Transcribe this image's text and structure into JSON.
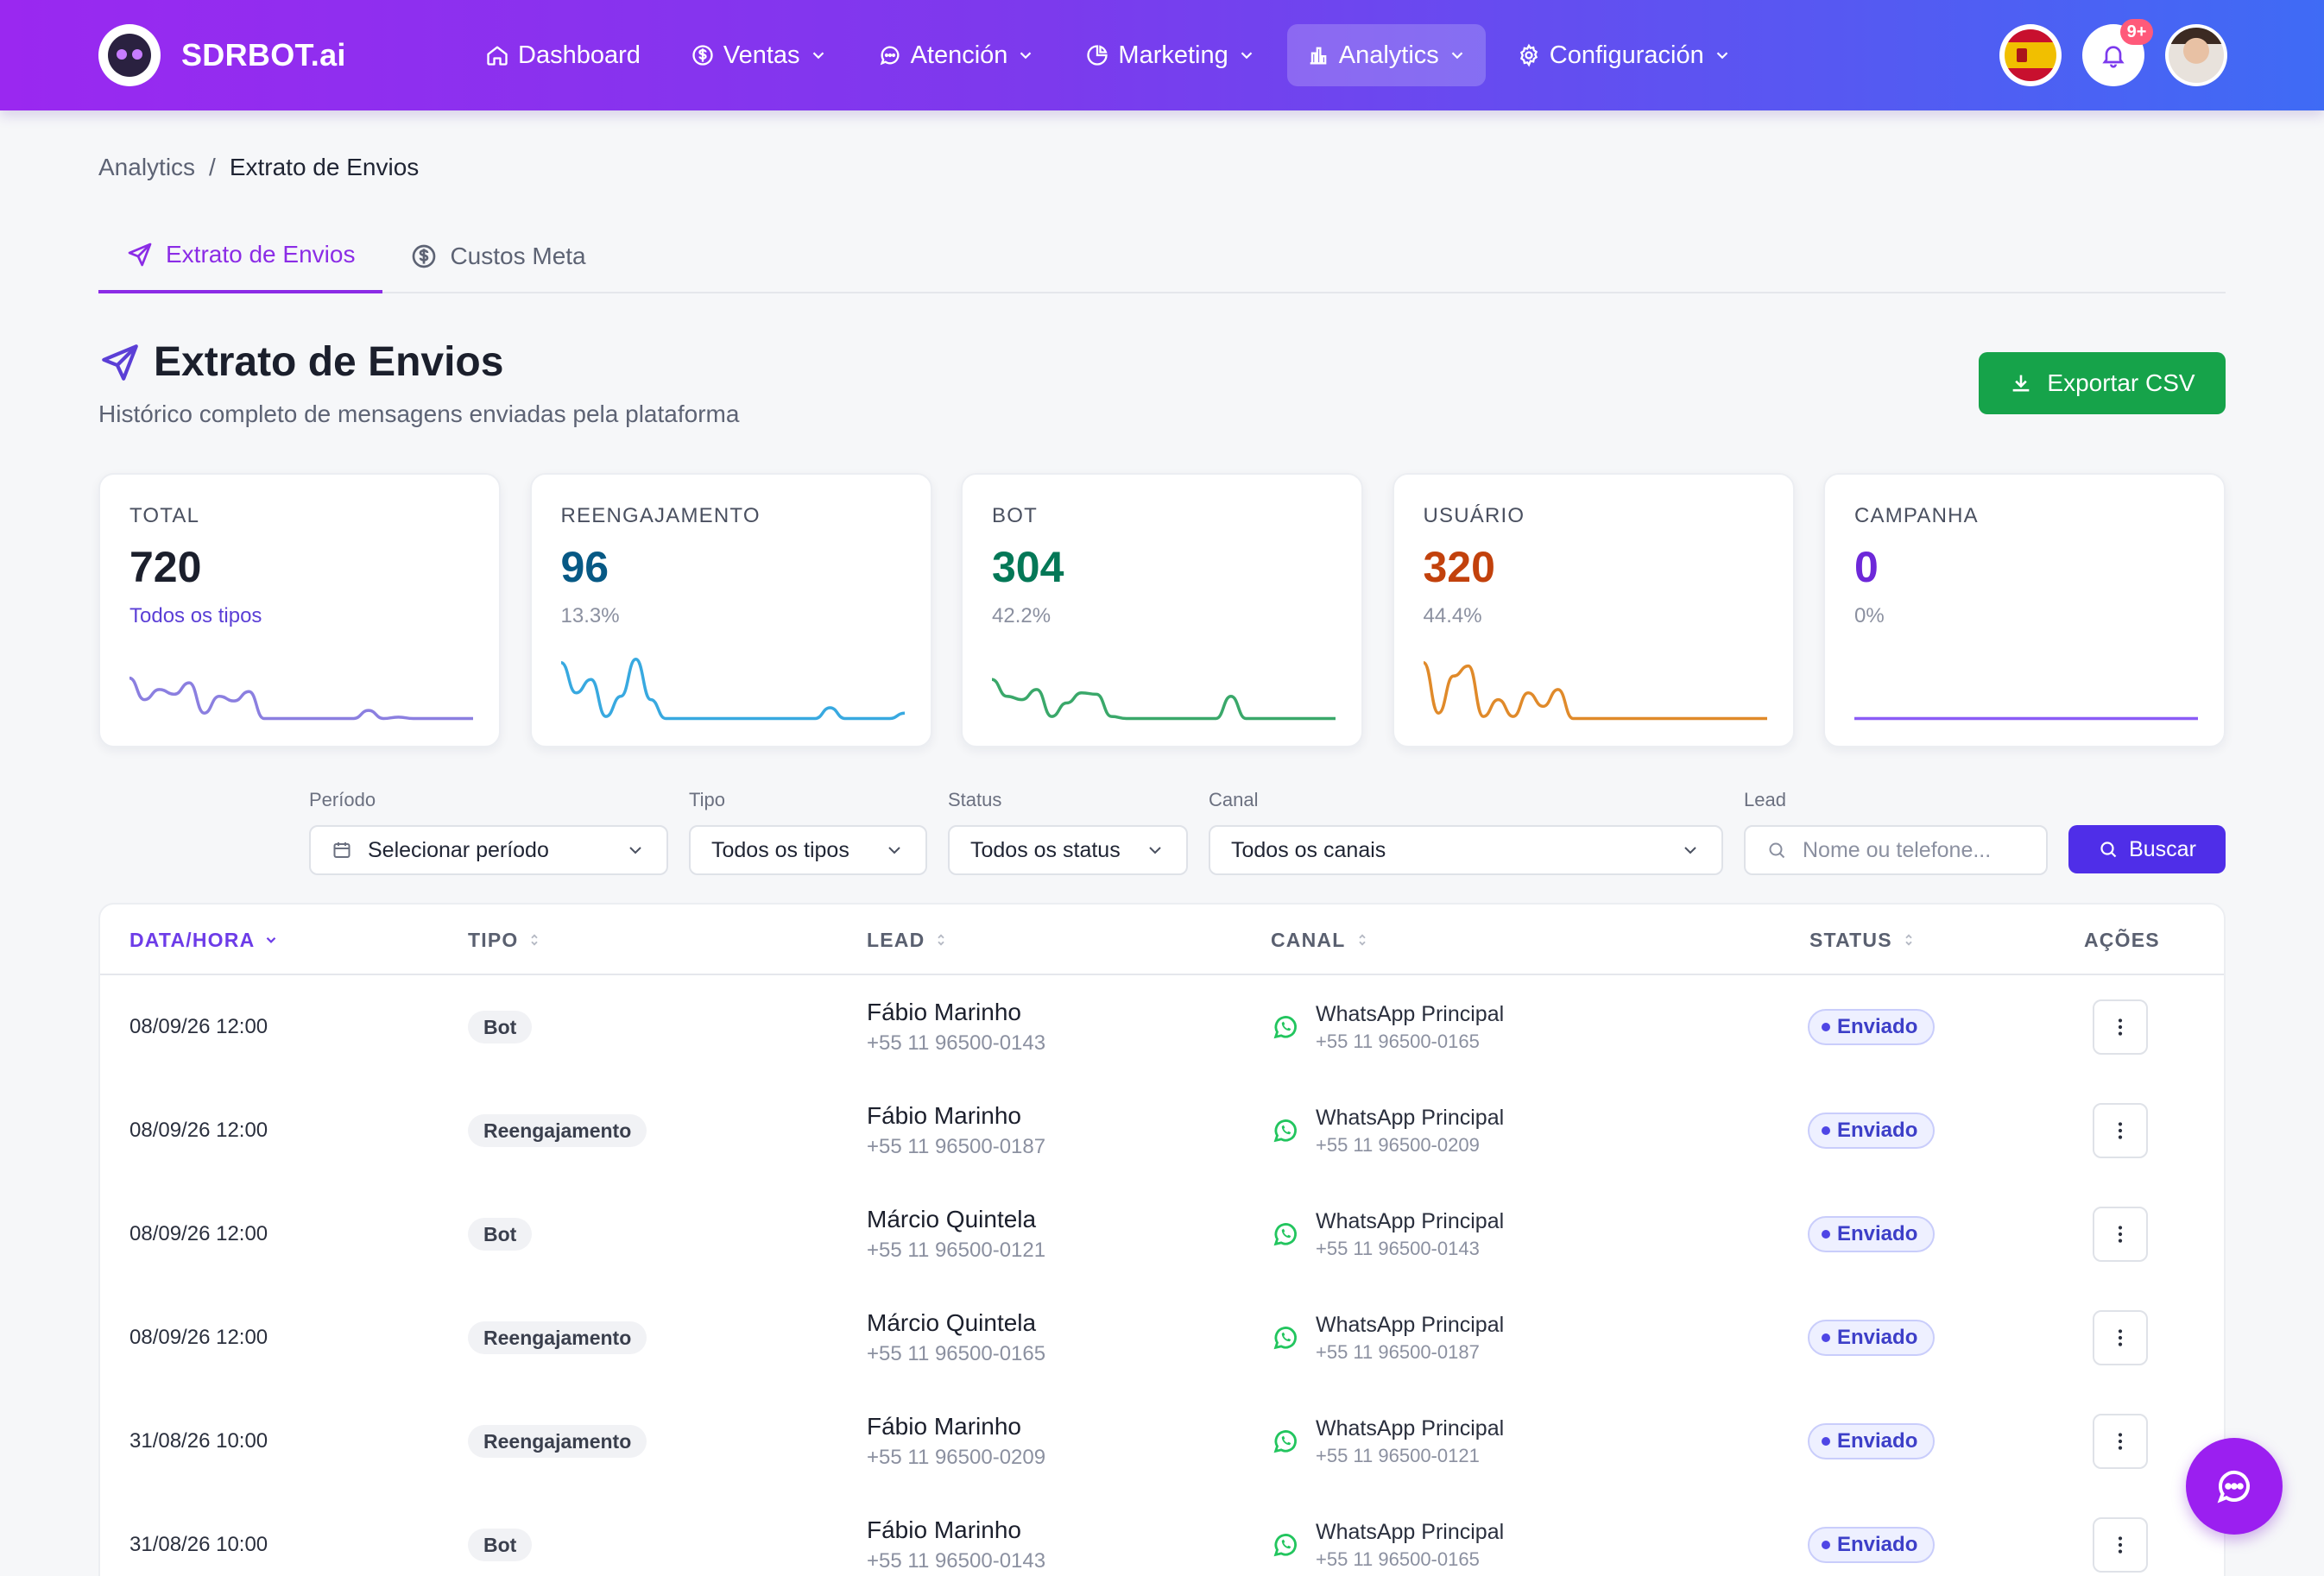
{
  "brand": {
    "name": "SDRBOT.ai"
  },
  "nav": {
    "items": [
      {
        "label": "Dashboard",
        "icon": "home-icon",
        "dropdown": false,
        "active": false
      },
      {
        "label": "Ventas",
        "icon": "dollar-icon",
        "dropdown": true,
        "active": false
      },
      {
        "label": "Atención",
        "icon": "chat-bubble-icon",
        "dropdown": true,
        "active": false
      },
      {
        "label": "Marketing",
        "icon": "pie-chart-icon",
        "dropdown": true,
        "active": false
      },
      {
        "label": "Analytics",
        "icon": "bar-chart-icon",
        "dropdown": true,
        "active": true
      },
      {
        "label": "Configuración",
        "icon": "gear-icon",
        "dropdown": true,
        "active": false
      }
    ],
    "notifications_badge": "9+"
  },
  "breadcrumb": {
    "parent": "Analytics",
    "separator": "/",
    "current": "Extrato de Envios"
  },
  "tabs": [
    {
      "label": "Extrato de Envios",
      "icon": "send-icon",
      "active": true
    },
    {
      "label": "Custos Meta",
      "icon": "dollar-circle-icon",
      "active": false
    }
  ],
  "header": {
    "title": "Extrato de Envios",
    "subtitle": "Histórico completo de mensagens enviadas pela plataforma",
    "export_label": "Exportar CSV"
  },
  "stats": [
    {
      "label": "TOTAL",
      "value": "720",
      "sub": "Todos os tipos",
      "color": "#1b1f2c",
      "sub_color": "#5b3fd6",
      "spark_color": "#8b7fe0",
      "spark": [
        0.62,
        0.3,
        0.45,
        0.38,
        0.55,
        0.1,
        0.35,
        0.28,
        0.42,
        0.02,
        0.02,
        0.02,
        0.02,
        0.02,
        0.02,
        0.02,
        0.14,
        0.02,
        0.04,
        0.02,
        0.02,
        0.02,
        0.02,
        0.02
      ]
    },
    {
      "label": "REENGAJAMENTO",
      "value": "96",
      "sub": "13.3%",
      "color": "#075985",
      "sub_color": "#8b90a0",
      "spark_color": "#38a9e0",
      "spark": [
        0.85,
        0.4,
        0.6,
        0.05,
        0.35,
        0.9,
        0.3,
        0.02,
        0.02,
        0.02,
        0.02,
        0.02,
        0.02,
        0.02,
        0.02,
        0.02,
        0.02,
        0.02,
        0.18,
        0.02,
        0.02,
        0.02,
        0.02,
        0.1
      ]
    },
    {
      "label": "BOT",
      "value": "304",
      "sub": "42.2%",
      "color": "#047857",
      "sub_color": "#8b90a0",
      "spark_color": "#3aa86a",
      "spark": [
        0.6,
        0.35,
        0.3,
        0.45,
        0.05,
        0.25,
        0.4,
        0.38,
        0.05,
        0.02,
        0.02,
        0.02,
        0.02,
        0.02,
        0.02,
        0.02,
        0.35,
        0.02,
        0.02,
        0.02,
        0.02,
        0.02,
        0.02,
        0.02
      ]
    },
    {
      "label": "USUÁRIO",
      "value": "320",
      "sub": "44.4%",
      "color": "#c2410c",
      "sub_color": "#8b90a0",
      "spark_color": "#e08a2a",
      "spark": [
        0.85,
        0.1,
        0.65,
        0.8,
        0.05,
        0.3,
        0.05,
        0.4,
        0.2,
        0.45,
        0.02,
        0.02,
        0.02,
        0.02,
        0.02,
        0.02,
        0.02,
        0.02,
        0.02,
        0.02,
        0.02,
        0.02,
        0.02,
        0.02
      ]
    },
    {
      "label": "CAMPANHA",
      "value": "0",
      "sub": "0%",
      "color": "#6d28d9",
      "sub_color": "#8b90a0",
      "spark_color": "#8b5cf6",
      "spark": [
        0.02,
        0.02,
        0.02,
        0.02,
        0.02,
        0.02,
        0.02,
        0.02,
        0.02,
        0.02,
        0.02,
        0.02,
        0.02,
        0.02,
        0.02,
        0.02,
        0.02,
        0.02,
        0.02,
        0.02,
        0.02,
        0.02,
        0.02,
        0.02
      ]
    }
  ],
  "filters": {
    "periodo": {
      "label": "Período",
      "value": "Selecionar período"
    },
    "tipo": {
      "label": "Tipo",
      "value": "Todos os tipos"
    },
    "status": {
      "label": "Status",
      "value": "Todos os status"
    },
    "canal": {
      "label": "Canal",
      "value": "Todos os canais"
    },
    "lead": {
      "label": "Lead",
      "placeholder": "Nome ou telefone..."
    },
    "search_label": "Buscar"
  },
  "table": {
    "columns": [
      "DATA/HORA",
      "TIPO",
      "LEAD",
      "CANAL",
      "STATUS",
      "AÇÕES"
    ],
    "rows": [
      {
        "date": "08/09/26 12:00",
        "type": "Bot",
        "lead_name": "Fábio Marinho",
        "lead_phone": "+55 11 96500-0143",
        "canal_name": "WhatsApp Principal",
        "canal_phone": "+55 11 96500-0165",
        "status": "Enviado"
      },
      {
        "date": "08/09/26 12:00",
        "type": "Reengajamento",
        "lead_name": "Fábio Marinho",
        "lead_phone": "+55 11 96500-0187",
        "canal_name": "WhatsApp Principal",
        "canal_phone": "+55 11 96500-0209",
        "status": "Enviado"
      },
      {
        "date": "08/09/26 12:00",
        "type": "Bot",
        "lead_name": "Márcio Quintela",
        "lead_phone": "+55 11 96500-0121",
        "canal_name": "WhatsApp Principal",
        "canal_phone": "+55 11 96500-0143",
        "status": "Enviado"
      },
      {
        "date": "08/09/26 12:00",
        "type": "Reengajamento",
        "lead_name": "Márcio Quintela",
        "lead_phone": "+55 11 96500-0165",
        "canal_name": "WhatsApp Principal",
        "canal_phone": "+55 11 96500-0187",
        "status": "Enviado"
      },
      {
        "date": "31/08/26 10:00",
        "type": "Reengajamento",
        "lead_name": "Fábio Marinho",
        "lead_phone": "+55 11 96500-0209",
        "canal_name": "WhatsApp Principal",
        "canal_phone": "+55 11 96500-0121",
        "status": "Enviado"
      },
      {
        "date": "31/08/26 10:00",
        "type": "Bot",
        "lead_name": "Fábio Marinho",
        "lead_phone": "+55 11 96500-0143",
        "canal_name": "WhatsApp Principal",
        "canal_phone": "+55 11 96500-0165",
        "status": "Enviado"
      }
    ]
  }
}
